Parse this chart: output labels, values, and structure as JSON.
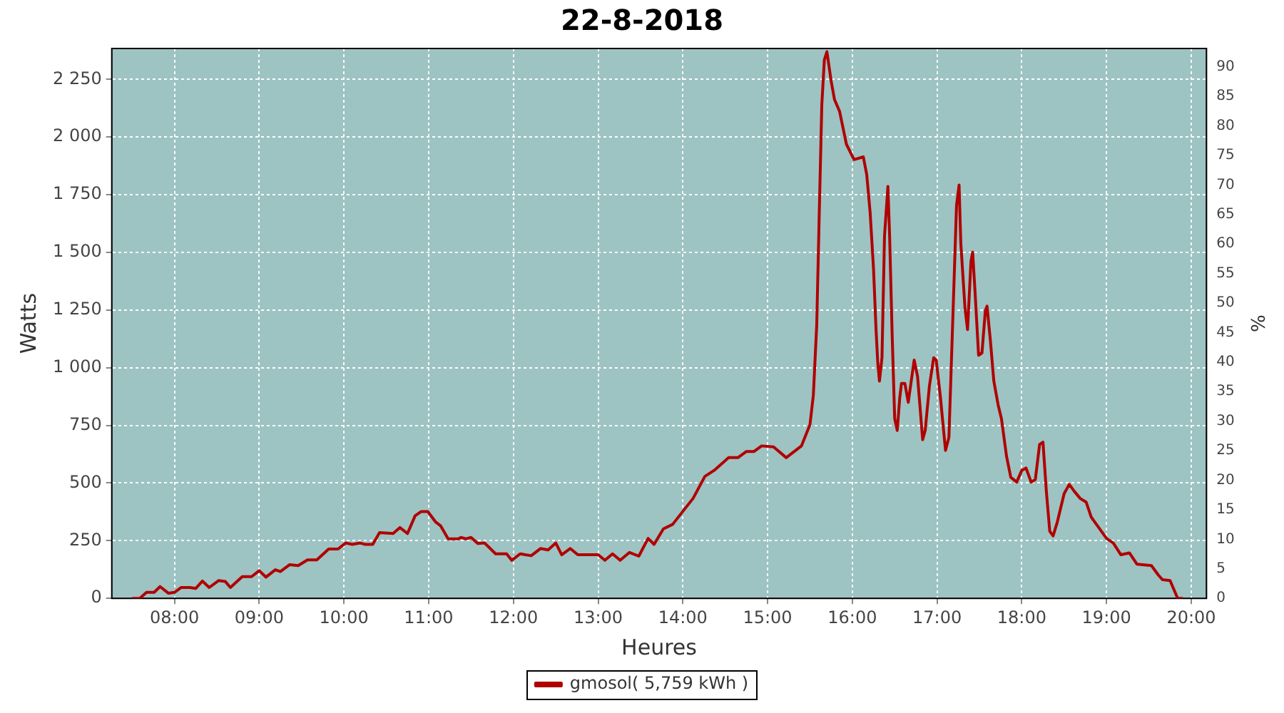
{
  "chart_data": {
    "type": "line",
    "title": "22-8-2018",
    "xlabel": "Heures",
    "ylabel": "Watts",
    "y2label": "%",
    "x": [
      7.5,
      7.59,
      7.67,
      7.76,
      7.83,
      7.93,
      8.0,
      8.08,
      8.18,
      8.25,
      8.33,
      8.41,
      8.52,
      8.6,
      8.66,
      8.8,
      8.91,
      9.0,
      9.08,
      9.19,
      9.25,
      9.36,
      9.46,
      9.57,
      9.68,
      9.82,
      9.93,
      10.02,
      10.1,
      10.19,
      10.25,
      10.34,
      10.42,
      10.58,
      10.66,
      10.75,
      10.84,
      10.91,
      10.99,
      11.08,
      11.14,
      11.23,
      11.35,
      11.38,
      11.44,
      11.5,
      11.58,
      11.66,
      11.79,
      11.92,
      11.98,
      12.08,
      12.14,
      12.21,
      12.32,
      12.41,
      12.5,
      12.57,
      12.67,
      12.76,
      13.0,
      13.08,
      13.17,
      13.26,
      13.37,
      13.48,
      13.59,
      13.66,
      13.77,
      13.88,
      14.01,
      14.12,
      14.26,
      14.37,
      14.54,
      14.65,
      14.75,
      14.84,
      14.93,
      15.07,
      15.22,
      15.4,
      15.5,
      15.54,
      15.58,
      15.61,
      15.64,
      15.67,
      15.7,
      15.75,
      15.79,
      15.85,
      15.93,
      16.02,
      16.13,
      16.17,
      16.21,
      16.25,
      16.28,
      16.3,
      16.32,
      16.35,
      16.38,
      16.42,
      16.44,
      16.47,
      16.5,
      16.53,
      16.56,
      16.58,
      16.62,
      16.66,
      16.73,
      16.77,
      16.83,
      16.86,
      16.91,
      16.96,
      16.99,
      17.04,
      17.1,
      17.14,
      17.18,
      17.23,
      17.26,
      17.28,
      17.33,
      17.36,
      17.4,
      17.42,
      17.45,
      17.49,
      17.53,
      17.57,
      17.59,
      17.63,
      17.67,
      17.72,
      17.76,
      17.82,
      17.87,
      17.94,
      18.0,
      18.05,
      18.11,
      18.16,
      18.21,
      18.25,
      18.29,
      18.33,
      18.37,
      18.42,
      18.5,
      18.56,
      18.62,
      18.69,
      18.76,
      18.82,
      18.92,
      19.0,
      19.08,
      19.17,
      19.27,
      19.36,
      19.53,
      19.61,
      19.66,
      19.75,
      19.84,
      19.9
    ],
    "series": [
      {
        "name": "gmosol( 5,759 kWh )",
        "color": "#b00000",
        "values": [
          0,
          0,
          26,
          26,
          51,
          22,
          26,
          47,
          47,
          43,
          75,
          47,
          77,
          73,
          47,
          94,
          94,
          120,
          92,
          124,
          116,
          146,
          142,
          167,
          167,
          214,
          214,
          240,
          234,
          240,
          234,
          234,
          285,
          281,
          307,
          281,
          358,
          376,
          376,
          332,
          315,
          258,
          258,
          264,
          258,
          264,
          238,
          240,
          193,
          193,
          165,
          193,
          189,
          185,
          216,
          210,
          240,
          189,
          216,
          189,
          189,
          165,
          193,
          165,
          199,
          183,
          260,
          234,
          301,
          321,
          382,
          433,
          529,
          555,
          610,
          610,
          637,
          637,
          661,
          657,
          610,
          661,
          753,
          881,
          1186,
          1674,
          2142,
          2335,
          2370,
          2243,
          2162,
          2111,
          1969,
          1902,
          1914,
          1837,
          1674,
          1430,
          1165,
          1023,
          942,
          1043,
          1572,
          1786,
          1572,
          1145,
          779,
          728,
          871,
          932,
          932,
          850,
          1033,
          962,
          688,
          728,
          921,
          1043,
          1033,
          871,
          641,
          698,
          1145,
          1705,
          1792,
          1542,
          1257,
          1165,
          1460,
          1501,
          1318,
          1054,
          1064,
          1247,
          1267,
          1115,
          942,
          840,
          779,
          616,
          525,
          504,
          555,
          565,
          504,
          515,
          667,
          677,
          464,
          291,
          271,
          332,
          454,
          494,
          464,
          433,
          417,
          352,
          301,
          260,
          240,
          189,
          197,
          148,
          142,
          102,
          81,
          77,
          0,
          0
        ]
      }
    ],
    "xlim": [
      7.26,
      20.18
    ],
    "xticks": [
      {
        "value": 8,
        "label": "08:00"
      },
      {
        "value": 9,
        "label": "09:00"
      },
      {
        "value": 10,
        "label": "10:00"
      },
      {
        "value": 11,
        "label": "11:00"
      },
      {
        "value": 12,
        "label": "12:00"
      },
      {
        "value": 13,
        "label": "13:00"
      },
      {
        "value": 14,
        "label": "14:00"
      },
      {
        "value": 15,
        "label": "15:00"
      },
      {
        "value": 16,
        "label": "16:00"
      },
      {
        "value": 17,
        "label": "17:00"
      },
      {
        "value": 18,
        "label": "18:00"
      },
      {
        "value": 19,
        "label": "19:00"
      },
      {
        "value": 20,
        "label": "20:00"
      }
    ],
    "ylim": [
      0,
      2384
    ],
    "yticks": [
      0,
      250,
      500,
      750,
      {
        "value": 1000,
        "label": "1 000"
      },
      {
        "value": 1250,
        "label": "1 250"
      },
      {
        "value": 1500,
        "label": "1 500"
      },
      {
        "value": 1750,
        "label": "1 750"
      },
      {
        "value": 2000,
        "label": "2 000"
      },
      {
        "value": 2250,
        "label": "2 250"
      }
    ],
    "y2lim": [
      0,
      93.1
    ],
    "y2ticks": [
      0,
      5,
      10,
      15,
      20,
      25,
      30,
      35,
      40,
      45,
      50,
      55,
      60,
      65,
      70,
      75,
      80,
      85,
      90
    ],
    "grid": true,
    "legend": "bottom",
    "marker": "none",
    "line_style": "solid"
  }
}
